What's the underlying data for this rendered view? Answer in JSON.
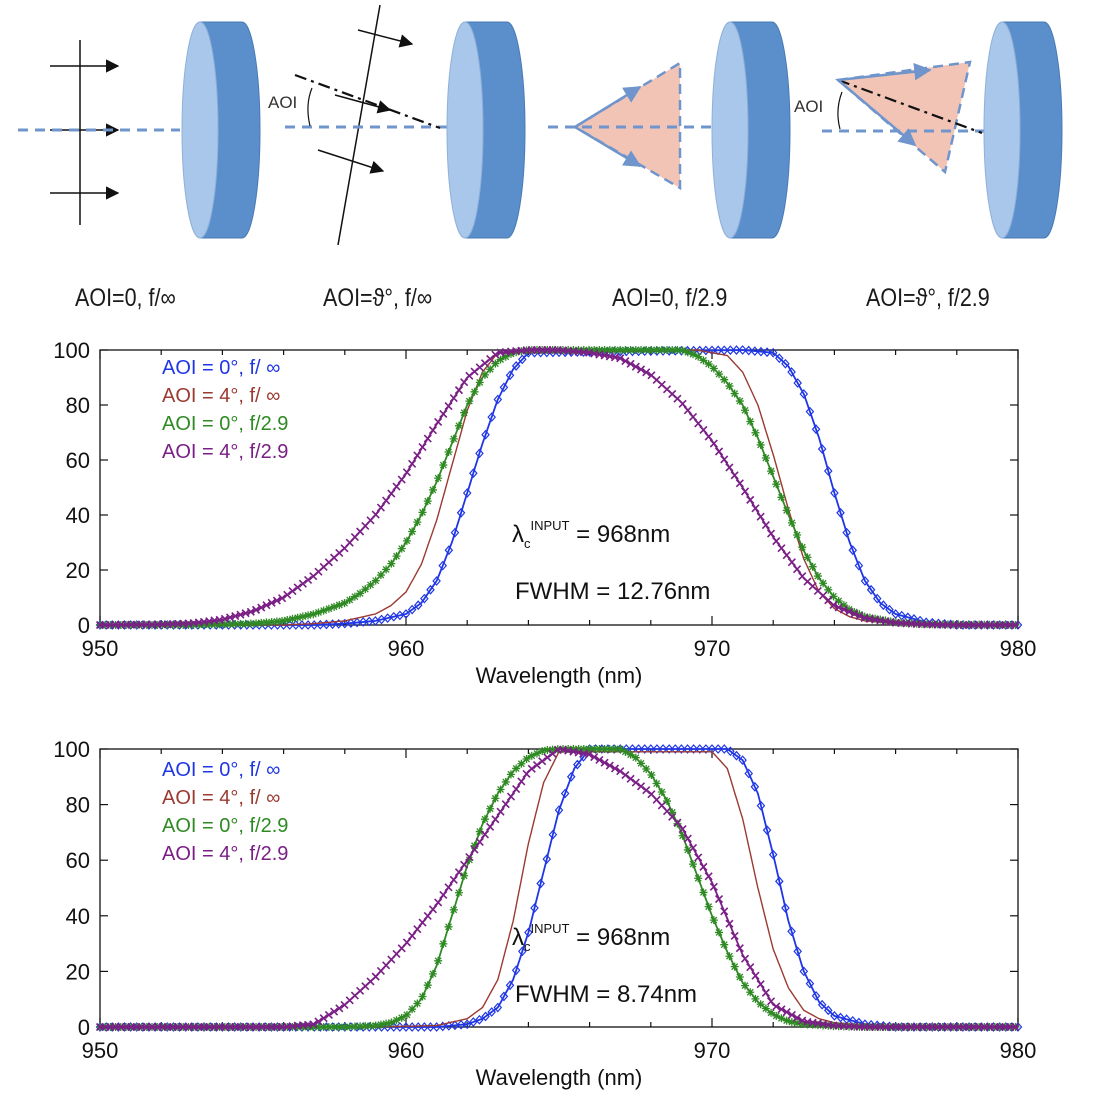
{
  "diagrams": [
    {
      "caption": "AOI=0, f/∞",
      "aoi_label": "",
      "kind": "collimated",
      "tilt": false
    },
    {
      "caption": "AOI=ϑ°, f/∞",
      "aoi_label": "AOI",
      "kind": "collimated",
      "tilt": true
    },
    {
      "caption": "AOI=0, f/2.9",
      "aoi_label": "",
      "kind": "cone",
      "tilt": false
    },
    {
      "caption": "AOI=ϑ°, f/2.9",
      "aoi_label": "AOI",
      "kind": "cone",
      "tilt": true
    }
  ],
  "colors": {
    "filter_front": "#a9c7ea",
    "filter_side": "#5b8fcb",
    "axis_dash": "#6f95cc",
    "cone_fill": "#f2c4b6",
    "blue": "#1f36e6",
    "red": "#9b3a30",
    "green": "#2f8a23",
    "purple": "#7a1f86"
  },
  "chart_data": [
    {
      "type": "line",
      "xlabel": "Wavelength (nm)",
      "ylabel": "",
      "xlim": [
        950,
        980
      ],
      "ylim": [
        0,
        100
      ],
      "xticks": [
        950,
        960,
        970,
        980
      ],
      "yticks": [
        0,
        20,
        40,
        60,
        80,
        100
      ],
      "legend_position": "top-left",
      "annotation": {
        "lambda_sym": "λ",
        "sub": "c",
        "sup": "INPUT",
        "lambda_value": " = 968nm",
        "fwhm": "FWHM = 12.76nm"
      },
      "series": [
        {
          "name": "AOI = 0°, f/ ∞",
          "color": "#1f36e6",
          "marker": "diamond",
          "x": [
            950,
            952,
            954,
            956,
            957,
            958,
            959,
            960,
            960.5,
            961,
            961.5,
            962,
            962.5,
            963,
            963.5,
            964,
            971,
            972,
            972.5,
            973,
            973.5,
            974,
            974.5,
            975,
            975.5,
            976,
            977,
            978,
            980
          ],
          "y": [
            0,
            0,
            0,
            0,
            0,
            0.5,
            1.5,
            4,
            8,
            16,
            30,
            48,
            66,
            82,
            93,
            99,
            100,
            99,
            94,
            84,
            68,
            48,
            30,
            16,
            8,
            4,
            1,
            0,
            0
          ]
        },
        {
          "name": "AOI = 4°, f/ ∞",
          "color": "#9b3a30",
          "marker": "none",
          "x": [
            950,
            954,
            956,
            957,
            958,
            959,
            959.5,
            960,
            960.5,
            961,
            961.5,
            962,
            962.5,
            963,
            969.5,
            970.5,
            971,
            971.5,
            972,
            972.5,
            973,
            973.5,
            974,
            974.5,
            975,
            976,
            978,
            980
          ],
          "y": [
            0,
            0,
            0,
            0.5,
            1.5,
            4,
            7,
            12,
            22,
            38,
            58,
            78,
            92,
            99,
            100,
            98,
            92,
            80,
            62,
            42,
            24,
            12,
            6,
            3,
            1.5,
            0.5,
            0,
            0
          ]
        },
        {
          "name": "AOI = 0°, f/2.9",
          "color": "#2f8a23",
          "marker": "star",
          "x": [
            950,
            953,
            955,
            956,
            957,
            958,
            958.5,
            959,
            959.5,
            960,
            960.5,
            961,
            961.5,
            962,
            962.5,
            963,
            963.5,
            964,
            969,
            969.5,
            970,
            970.5,
            971,
            971.5,
            972,
            972.5,
            973,
            973.5,
            974,
            974.5,
            975,
            976,
            977,
            980
          ],
          "y": [
            0,
            0,
            0.5,
            1.5,
            4,
            8,
            11.5,
            16,
            22,
            30,
            40,
            52,
            66,
            80,
            90,
            96,
            99,
            100,
            100,
            98,
            94,
            88,
            80,
            68,
            54,
            40,
            27,
            17,
            10,
            5.5,
            3,
            1,
            0.3,
            0
          ]
        },
        {
          "name": "AOI = 4°, f/2.9",
          "color": "#7a1f86",
          "marker": "x",
          "x": [
            950,
            952,
            953,
            954,
            955,
            956,
            957,
            958,
            959,
            960,
            961,
            962,
            963,
            964,
            965,
            966,
            967,
            968,
            969,
            970,
            971,
            972,
            973,
            974,
            975,
            976,
            977,
            978,
            980
          ],
          "y": [
            0,
            0.2,
            0.6,
            2,
            5,
            10,
            18,
            28,
            40,
            55,
            73,
            90,
            99,
            100,
            100,
            99,
            97,
            91,
            81,
            67,
            50,
            32,
            17,
            7,
            2.5,
            0.8,
            0.2,
            0,
            0
          ]
        }
      ]
    },
    {
      "type": "line",
      "xlabel": "Wavelength (nm)",
      "ylabel": "",
      "xlim": [
        950,
        980
      ],
      "ylim": [
        0,
        100
      ],
      "xticks": [
        950,
        960,
        970,
        980
      ],
      "yticks": [
        0,
        20,
        40,
        60,
        80,
        100
      ],
      "legend_position": "top-left",
      "annotation": {
        "lambda_sym": "λ",
        "sub": "c",
        "sup": "INPUT",
        "lambda_value": " = 968nm",
        "fwhm": "FWHM = 8.74nm"
      },
      "series": [
        {
          "name": "AOI = 0°, f/ ∞",
          "color": "#1f36e6",
          "marker": "diamond",
          "x": [
            950,
            959,
            961,
            962,
            962.5,
            963,
            963.5,
            964,
            964.5,
            965,
            965.5,
            966,
            970.5,
            971,
            971.5,
            972,
            972.5,
            973,
            973.5,
            974,
            975,
            976,
            980
          ],
          "y": [
            0,
            0,
            0,
            1,
            3,
            7,
            17,
            34,
            56,
            78,
            93,
            100,
            100,
            96,
            84,
            62,
            38,
            20,
            9,
            4,
            1,
            0,
            0
          ]
        },
        {
          "name": "AOI = 4°, f/ ∞",
          "color": "#9b3a30",
          "marker": "none",
          "x": [
            950,
            959,
            961,
            962,
            962.5,
            963,
            963.5,
            964,
            964.5,
            965,
            970,
            970.5,
            971,
            971.5,
            972,
            972.5,
            973,
            973.5,
            974,
            975,
            980
          ],
          "y": [
            0,
            0,
            0.5,
            3,
            7,
            17,
            38,
            66,
            88,
            99,
            99,
            93,
            75,
            50,
            28,
            14,
            6,
            3,
            1.5,
            0.5,
            0
          ]
        },
        {
          "name": "AOI = 0°, f/2.9",
          "color": "#2f8a23",
          "marker": "star",
          "x": [
            950,
            958,
            959,
            959.5,
            960,
            960.5,
            961,
            961.5,
            962,
            962.5,
            963,
            963.5,
            964,
            964.5,
            965,
            967,
            967.5,
            968,
            968.5,
            969,
            969.5,
            970,
            970.5,
            971,
            971.5,
            972,
            972.5,
            973,
            974,
            975,
            980
          ],
          "y": [
            0,
            0,
            0.5,
            1.5,
            4,
            10,
            22,
            40,
            58,
            73,
            84,
            92,
            97,
            99.5,
            100,
            100,
            97,
            91,
            82,
            70,
            55,
            40,
            27,
            16,
            9,
            4.5,
            2,
            1,
            0.3,
            0,
            0
          ]
        },
        {
          "name": "AOI = 4°, f/2.9",
          "color": "#7a1f86",
          "marker": "x",
          "x": [
            950,
            956,
            957,
            958,
            959,
            960,
            961,
            962,
            963,
            964,
            965,
            966,
            967,
            968,
            969,
            970,
            971,
            972,
            973,
            974,
            975,
            980
          ],
          "y": [
            0,
            0,
            1,
            8,
            18,
            30,
            44,
            60,
            76,
            92,
            100,
            98,
            92,
            84,
            72,
            52,
            26,
            8,
            2,
            0.5,
            0,
            0
          ]
        }
      ]
    }
  ]
}
